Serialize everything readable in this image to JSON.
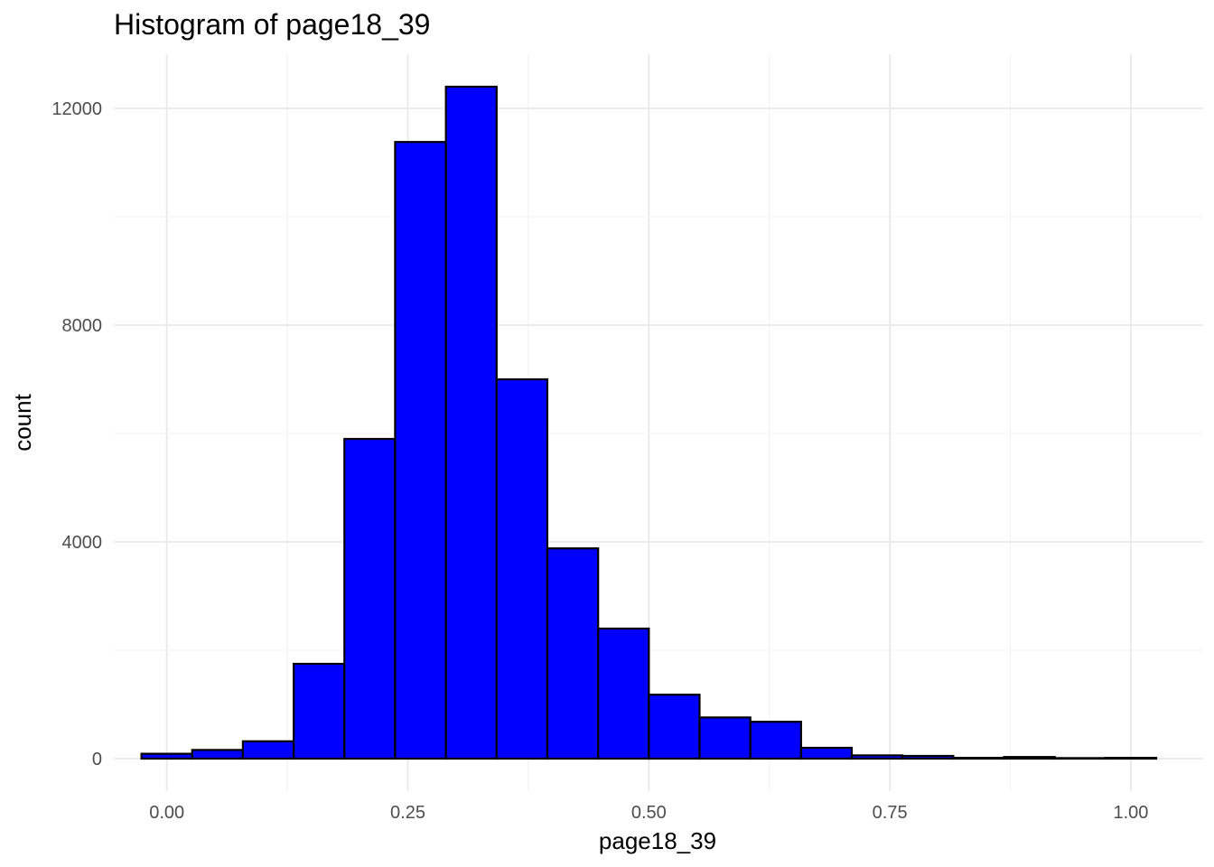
{
  "chart_data": {
    "type": "bar",
    "title": "Histogram of page18_39",
    "xlabel": "page18_39",
    "ylabel": "count",
    "xlim": [
      -0.055,
      1.075
    ],
    "ylim": [
      -600,
      13000
    ],
    "x_ticks": [
      0.0,
      0.25,
      0.5,
      0.75,
      1.0
    ],
    "x_tick_labels": [
      "0.00",
      "0.25",
      "0.50",
      "0.75",
      "1.00"
    ],
    "x_minor_ticks": [
      0.125,
      0.375,
      0.625,
      0.875
    ],
    "y_ticks": [
      0,
      4000,
      8000,
      12000
    ],
    "y_tick_labels": [
      "0",
      "4000",
      "8000",
      "12000"
    ],
    "y_minor_ticks": [
      2000,
      6000,
      10000
    ],
    "grid": true,
    "bar_fill": "#0000ff",
    "bar_outline": "#000000",
    "bins": [
      {
        "x0": -0.0263,
        "x1": 0.0263,
        "count": 90
      },
      {
        "x0": 0.0263,
        "x1": 0.0789,
        "count": 160
      },
      {
        "x0": 0.0789,
        "x1": 0.1316,
        "count": 320
      },
      {
        "x0": 0.1316,
        "x1": 0.1842,
        "count": 1750
      },
      {
        "x0": 0.1842,
        "x1": 0.2368,
        "count": 5900
      },
      {
        "x0": 0.2368,
        "x1": 0.2895,
        "count": 11380
      },
      {
        "x0": 0.2895,
        "x1": 0.3421,
        "count": 12400
      },
      {
        "x0": 0.3421,
        "x1": 0.3947,
        "count": 7000
      },
      {
        "x0": 0.3947,
        "x1": 0.4474,
        "count": 3880
      },
      {
        "x0": 0.4474,
        "x1": 0.5,
        "count": 2400
      },
      {
        "x0": 0.5,
        "x1": 0.5526,
        "count": 1180
      },
      {
        "x0": 0.5526,
        "x1": 0.6053,
        "count": 760
      },
      {
        "x0": 0.6053,
        "x1": 0.6579,
        "count": 680
      },
      {
        "x0": 0.6579,
        "x1": 0.7105,
        "count": 200
      },
      {
        "x0": 0.7105,
        "x1": 0.7632,
        "count": 60
      },
      {
        "x0": 0.7632,
        "x1": 0.8158,
        "count": 50
      },
      {
        "x0": 0.8158,
        "x1": 0.8684,
        "count": 15
      },
      {
        "x0": 0.8684,
        "x1": 0.9211,
        "count": 30
      },
      {
        "x0": 0.9211,
        "x1": 0.9737,
        "count": 10
      },
      {
        "x0": 0.9737,
        "x1": 1.0263,
        "count": 15
      }
    ]
  }
}
